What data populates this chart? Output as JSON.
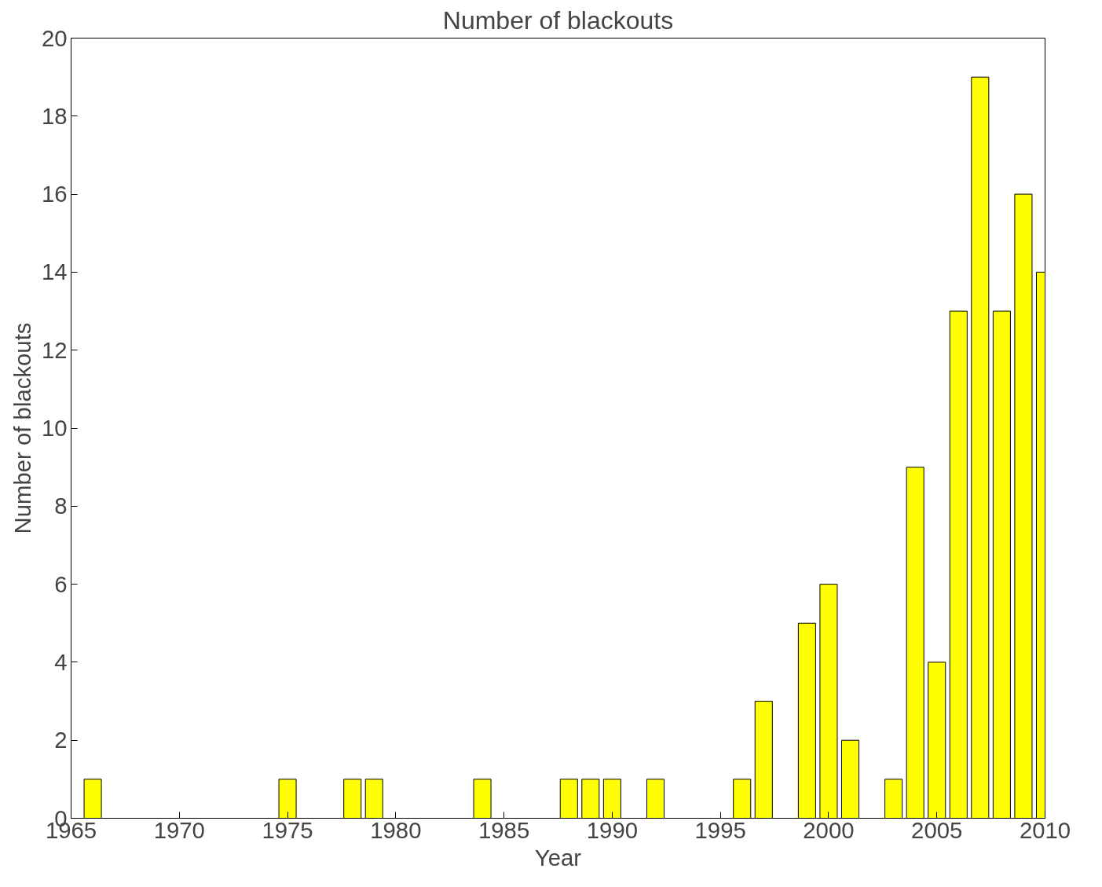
{
  "chart_data": {
    "type": "bar",
    "title": "Number of blackouts",
    "xlabel": "Year",
    "ylabel": "Number of blackouts",
    "x": [
      1966,
      1975,
      1978,
      1979,
      1984,
      1988,
      1989,
      1990,
      1992,
      1996,
      1997,
      1999,
      2000,
      2001,
      2003,
      2004,
      2005,
      2006,
      2007,
      2008,
      2009,
      2010
    ],
    "values": [
      1,
      1,
      1,
      1,
      1,
      1,
      1,
      1,
      1,
      1,
      3,
      5,
      6,
      2,
      1,
      9,
      4,
      13,
      19,
      13,
      16,
      14
    ],
    "color": "#ffff00",
    "xlim": [
      1965,
      2010
    ],
    "xticks": [
      1965,
      1970,
      1975,
      1980,
      1985,
      1990,
      1995,
      2000,
      2005,
      2010
    ],
    "ylim": [
      0,
      20
    ],
    "yticks": [
      0,
      2,
      4,
      6,
      8,
      10,
      12,
      14,
      16,
      18,
      20
    ],
    "grid": false
  }
}
